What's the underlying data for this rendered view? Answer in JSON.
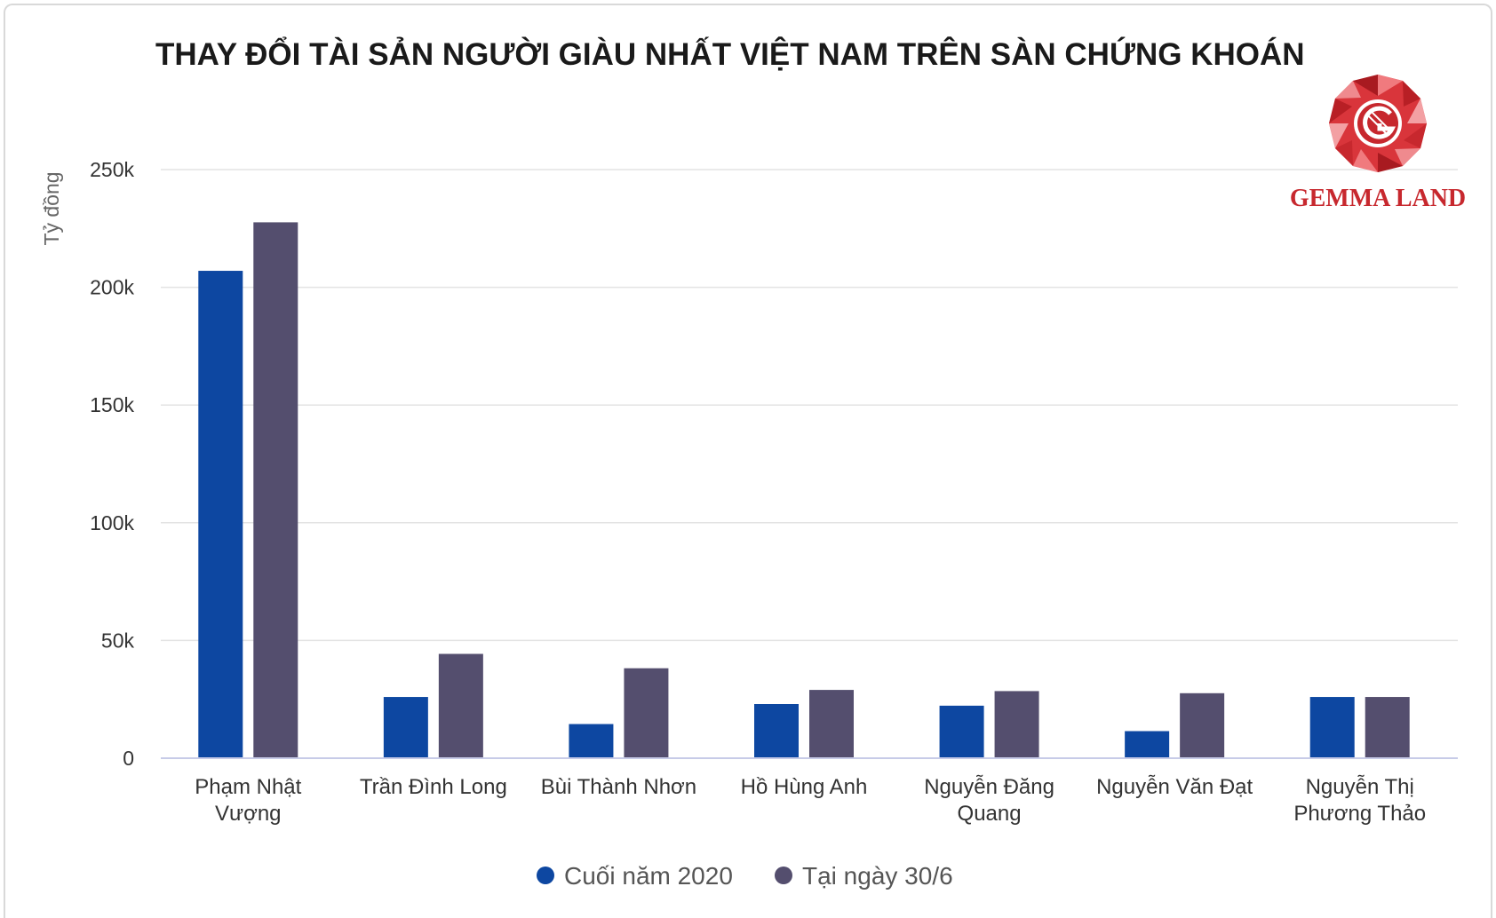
{
  "chart_data": {
    "type": "bar",
    "title": "THAY ĐỔI TÀI SẢN NGƯỜI GIÀU NHẤT VIỆT NAM TRÊN SÀN CHỨNG KHOÁN",
    "xlabel": "",
    "ylabel": "Tỷ đồng",
    "ylim": [
      0,
      250000
    ],
    "yticks": [
      0,
      50000,
      100000,
      150000,
      200000,
      250000
    ],
    "ytick_labels": [
      "0",
      "50k",
      "100k",
      "150k",
      "200k",
      "250k"
    ],
    "grid": true,
    "legend_position": "bottom",
    "categories": [
      [
        "Phạm Nhật",
        "Vượng"
      ],
      [
        "Trần Đình Long"
      ],
      [
        "Bùi Thành Nhơn"
      ],
      [
        "Hồ Hùng Anh"
      ],
      [
        "Nguyễn Đăng",
        "Quang"
      ],
      [
        "Nguyễn Văn Đạt"
      ],
      [
        "Nguyễn Thị",
        "Phương Thảo"
      ]
    ],
    "series": [
      {
        "name": "Cuối năm 2020",
        "color": "#0d47a1",
        "values": [
          207000,
          26000,
          14500,
          23000,
          22300,
          11500,
          26000
        ]
      },
      {
        "name": "Tại ngày 30/6",
        "color": "#544e6e",
        "values": [
          227600,
          44300,
          38200,
          29000,
          28500,
          27600,
          26000
        ]
      }
    ]
  },
  "logo": {
    "text": "GEMMA LAND",
    "color": "#c7282e"
  }
}
